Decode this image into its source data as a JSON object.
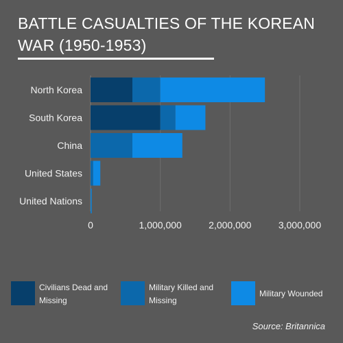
{
  "chart_data": {
    "type": "bar",
    "orientation": "horizontal",
    "stacked": true,
    "title_lines": [
      "BATTLE CASUALTIES OF THE KOREAN",
      "WAR (1950-1953)"
    ],
    "categories": [
      "North Korea",
      "South Korea",
      "China",
      "United States",
      "United Nations"
    ],
    "series": [
      {
        "name": "Civilians Dead and Missing",
        "color": "#073f6b",
        "values": [
          600000,
          1000000,
          0,
          0,
          0
        ]
      },
      {
        "name": "Military Killed and Missing",
        "color": "#0c68ab",
        "values": [
          400000,
          217000,
          600000,
          37000,
          4000
        ]
      },
      {
        "name": "Military Wounded",
        "color": "#0e8ae5",
        "values": [
          1500000,
          430000,
          716000,
          103000,
          12000
        ]
      }
    ],
    "xticks": [
      0,
      1000000,
      2000000,
      3000000
    ],
    "xtick_labels": [
      "0",
      "1,000,000",
      "2,000,000",
      "3,000,000"
    ],
    "xlim": [
      0,
      3000000
    ],
    "grid": true,
    "legend_position": "bottom",
    "source": "Source: Britannica"
  }
}
